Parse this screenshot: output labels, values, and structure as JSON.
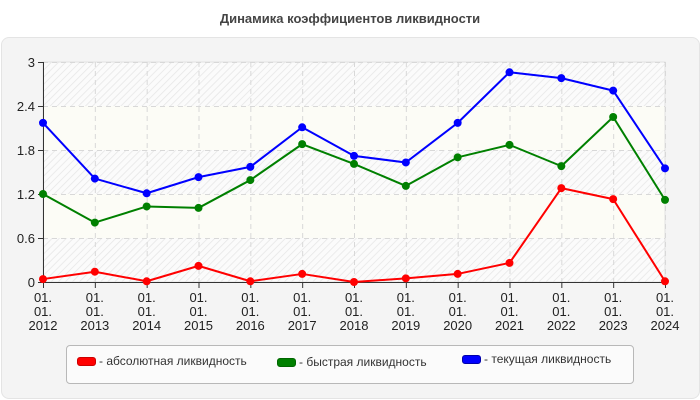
{
  "title": "Динамика коэффициентов ликвидности",
  "chart_data": {
    "type": "line",
    "title": "Динамика коэффициентов ликвидности",
    "xlabel": "",
    "ylabel": "",
    "categories": [
      "01.01.2012",
      "01.01.2013",
      "01.01.2014",
      "01.01.2015",
      "01.01.2016",
      "01.01.2017",
      "01.01.2018",
      "01.01.2019",
      "01.01.2020",
      "01.01.2021",
      "01.01.2022",
      "01.01.2023",
      "01.01.2024"
    ],
    "category_lines": [
      [
        "01.",
        "01.",
        "2012"
      ],
      [
        "01.",
        "01.",
        "2013"
      ],
      [
        "01.",
        "01.",
        "2014"
      ],
      [
        "01.",
        "01.",
        "2015"
      ],
      [
        "01.",
        "01.",
        "2016"
      ],
      [
        "01.",
        "01.",
        "2017"
      ],
      [
        "01.",
        "01.",
        "2018"
      ],
      [
        "01.",
        "01.",
        "2019"
      ],
      [
        "01.",
        "01.",
        "2020"
      ],
      [
        "01.",
        "01.",
        "2021"
      ],
      [
        "01.",
        "01.",
        "2022"
      ],
      [
        "01.",
        "01.",
        "2023"
      ],
      [
        "01.",
        "01.",
        "2024"
      ]
    ],
    "ylim": [
      0,
      3
    ],
    "yticks": [
      0,
      0.6,
      1.2,
      1.8,
      2.4,
      3
    ],
    "ytick_labels": [
      "0",
      "0.6",
      "1.2",
      "1.8",
      "2.4",
      "3"
    ],
    "grid": true,
    "legend_position": "bottom",
    "series": [
      {
        "name": "- абсолютная ликвидность",
        "color": "#ff0000",
        "values": [
          0.04,
          0.14,
          0.01,
          0.22,
          0.01,
          0.11,
          0.0,
          0.05,
          0.11,
          0.26,
          1.28,
          1.13,
          0.01
        ]
      },
      {
        "name": "- быстрая ликвидность",
        "color": "#008000",
        "values": [
          1.2,
          0.81,
          1.03,
          1.01,
          1.39,
          1.88,
          1.61,
          1.31,
          1.7,
          1.87,
          1.58,
          2.25,
          1.12
        ]
      },
      {
        "name": "- текущая ликвидность",
        "color": "#0000ff",
        "values": [
          2.17,
          1.41,
          1.21,
          1.43,
          1.57,
          2.11,
          1.72,
          1.63,
          2.17,
          2.86,
          2.78,
          2.61,
          1.55
        ]
      }
    ]
  },
  "legend": {
    "items": [
      {
        "label": "- абсолютная ликвидность",
        "color": "#ff0000"
      },
      {
        "label": "- быстрая ликвидность",
        "color": "#008000"
      },
      {
        "label": "- текущая ликвидность",
        "color": "#0000ff"
      }
    ]
  }
}
